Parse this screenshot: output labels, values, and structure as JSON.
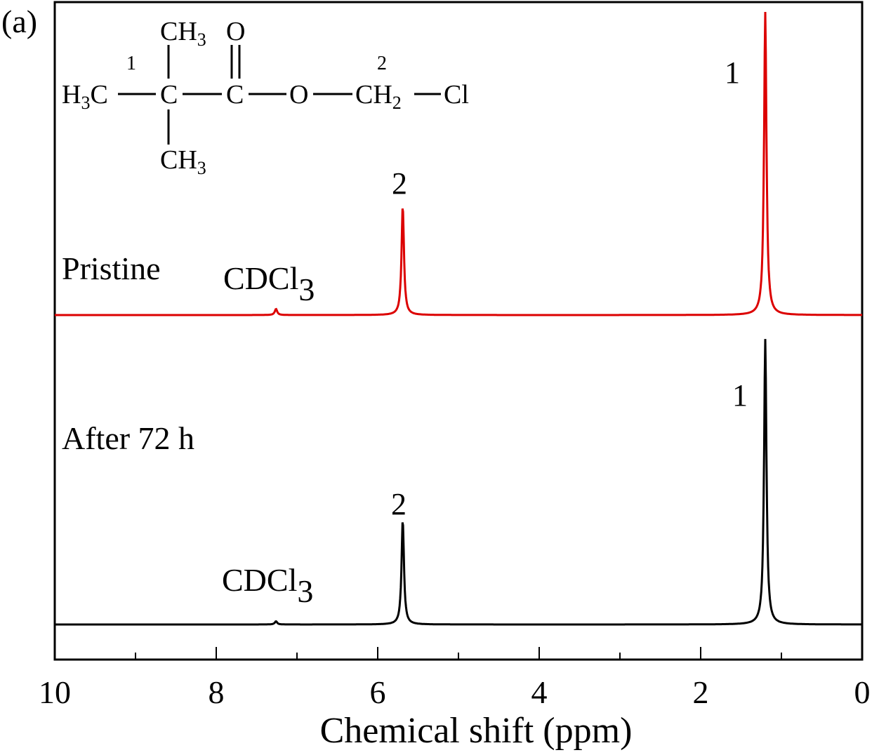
{
  "panel_label": "(a)",
  "colors": {
    "pristine": "#dc0000",
    "after": "#000000",
    "axis": "#000000"
  },
  "structure": {
    "position_1": "1",
    "position_2": "2",
    "h3c": "H",
    "h3c_sub": "3",
    "h3c_tail": "C",
    "c_quat": "C",
    "c_carbonyl": "C",
    "oxygen_ester": "O",
    "ch2": "CH",
    "ch2_sub": "2",
    "cl": "Cl",
    "ch3_top": "CH",
    "ch3_top_sub": "3",
    "ch3_bottom": "CH",
    "ch3_bottom_sub": "3",
    "oxygen_carbonyl": "O"
  },
  "chart_data": {
    "type": "line",
    "xlabel": "Chemical shift (ppm)",
    "ylabel": "",
    "xlim": [
      10,
      0
    ],
    "x_reversed": true,
    "x_ticks": [
      10,
      8,
      6,
      4,
      2,
      0
    ],
    "y_ticks_shown": false,
    "grid": false,
    "series": [
      {
        "name": "Pristine",
        "color": "#dc0000",
        "peaks": [
          {
            "ppm": 7.26,
            "height": 0.02,
            "label": "CDCl",
            "label_sub": "3"
          },
          {
            "ppm": 5.69,
            "height": 0.36,
            "label": "2"
          },
          {
            "ppm": 1.2,
            "height": 1.0,
            "label": "1"
          }
        ]
      },
      {
        "name": "After 72 h",
        "color": "#000000",
        "peaks": [
          {
            "ppm": 7.26,
            "height": 0.01,
            "label": "CDCl",
            "label_sub": "3"
          },
          {
            "ppm": 5.69,
            "height": 0.33,
            "label": "2"
          },
          {
            "ppm": 1.2,
            "height": 0.9,
            "label": "1"
          }
        ]
      }
    ]
  }
}
